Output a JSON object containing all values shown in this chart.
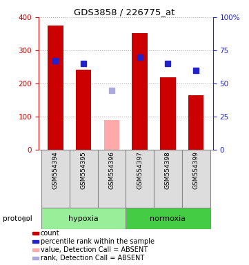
{
  "title": "GDS3858 / 226775_at",
  "samples": [
    "GSM554394",
    "GSM554395",
    "GSM554396",
    "GSM554397",
    "GSM554398",
    "GSM554399"
  ],
  "bar_values": [
    375,
    242,
    90,
    353,
    218,
    165
  ],
  "bar_colors": [
    "#cc0000",
    "#cc0000",
    "#ffaaaa",
    "#cc0000",
    "#cc0000",
    "#cc0000"
  ],
  "percentile_values": [
    67,
    65,
    45,
    70,
    65,
    60
  ],
  "percentile_colors": [
    "#2222cc",
    "#2222cc",
    "#aaaadd",
    "#2222cc",
    "#2222cc",
    "#2222cc"
  ],
  "absent_flags": [
    false,
    false,
    true,
    false,
    false,
    false
  ],
  "groups": [
    {
      "label": "hypoxia",
      "samples": [
        0,
        1,
        2
      ],
      "color": "#99ee99"
    },
    {
      "label": "normoxia",
      "samples": [
        3,
        4,
        5
      ],
      "color": "#44cc44"
    }
  ],
  "ylim_left": [
    0,
    400
  ],
  "ylim_right": [
    0,
    100
  ],
  "yticks_left": [
    0,
    100,
    200,
    300,
    400
  ],
  "ytick_labels_right": [
    "0",
    "25",
    "50",
    "75",
    "100%"
  ],
  "yticks_right": [
    0,
    25,
    50,
    75,
    100
  ],
  "left_axis_color": "#cc0000",
  "right_axis_color": "#2222cc",
  "background_color": "#ffffff",
  "plot_bg_color": "#ffffff",
  "protocol_label": "protocol",
  "legend_items": [
    {
      "label": "count",
      "color": "#cc0000"
    },
    {
      "label": "percentile rank within the sample",
      "color": "#2222cc"
    },
    {
      "label": "value, Detection Call = ABSENT",
      "color": "#ffaaaa"
    },
    {
      "label": "rank, Detection Call = ABSENT",
      "color": "#aaaadd"
    }
  ]
}
